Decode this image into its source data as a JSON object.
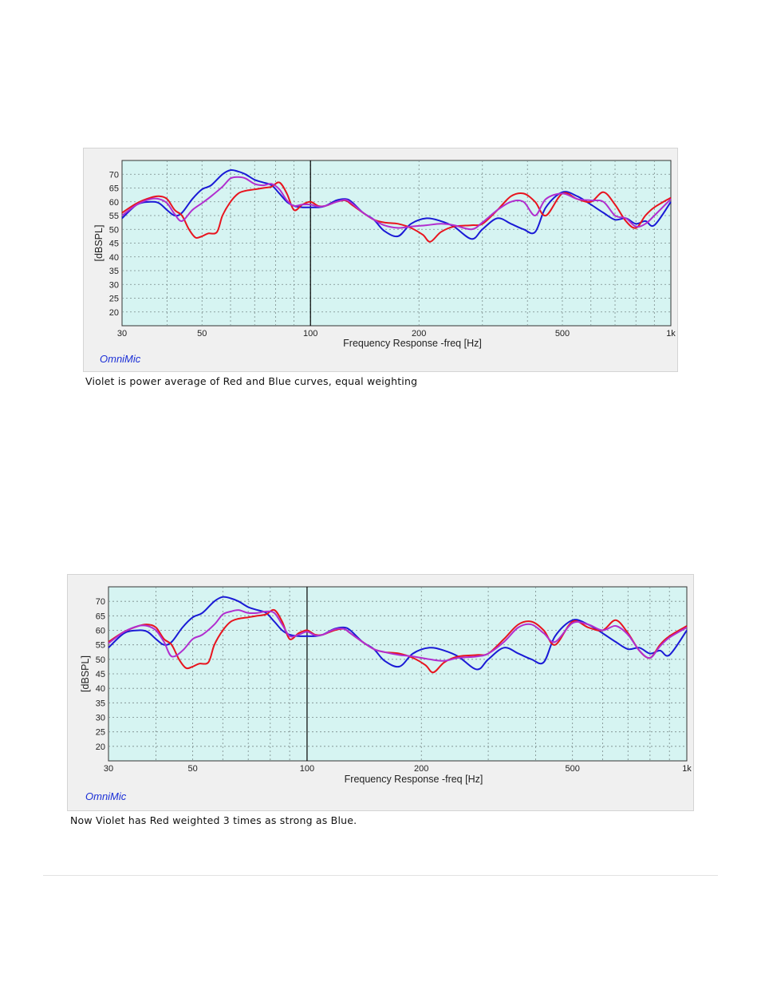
{
  "figures": [
    {
      "brand": "OmniMic",
      "caption": "Violet is power average of Red and Blue curves, equal weighting"
    },
    {
      "brand": "OmniMic",
      "caption": "Now Violet has Red weighted 3 times as strong as Blue."
    }
  ],
  "chart_data": [
    {
      "type": "line",
      "title": "",
      "xlabel": "Frequency Response -freq [Hz]",
      "ylabel": "[dBSPL]",
      "x_scale": "log",
      "xlim": [
        30,
        1000
      ],
      "ylim": [
        15,
        75
      ],
      "x_ticks": [
        30,
        50,
        100,
        200,
        500,
        1000
      ],
      "x_tick_labels": [
        "30",
        "50",
        "100",
        "200",
        "500",
        "1k"
      ],
      "y_ticks": [
        20,
        25,
        30,
        35,
        40,
        45,
        50,
        55,
        60,
        65,
        70
      ],
      "marker_line_x": 100,
      "grid": true,
      "colors": {
        "background": "#d6f4f2",
        "red": "#e8141e",
        "blue": "#1a1ad6",
        "violet": "#b12ecf",
        "grid": "#7a8a8a"
      },
      "series": [
        {
          "color": "#1a1ad6",
          "x": [
            30,
            33,
            36,
            38,
            40,
            42,
            44,
            47,
            50,
            53,
            57,
            60,
            63,
            66,
            70,
            74,
            78,
            82,
            86,
            90,
            95,
            100,
            105,
            110,
            118,
            125,
            130,
            140,
            150,
            160,
            175,
            190,
            210,
            230,
            250,
            280,
            300,
            330,
            360,
            390,
            420,
            450,
            500,
            550,
            600,
            650,
            700,
            750,
            800,
            850,
            900,
            1000
          ],
          "y": [
            54,
            59,
            60,
            59.5,
            57,
            55,
            56,
            61,
            64.5,
            66,
            70,
            71.5,
            71,
            70,
            68,
            67,
            66,
            63,
            60,
            58.5,
            58,
            58,
            58,
            58.5,
            60.5,
            61,
            60,
            56,
            53.5,
            49.5,
            47.5,
            52,
            54,
            53,
            51,
            46.5,
            50,
            54,
            52,
            50,
            49,
            58,
            63.5,
            62,
            59,
            56,
            53.5,
            54,
            52,
            53,
            51.5,
            60
          ]
        },
        {
          "color": "#e8141e",
          "x": [
            30,
            33,
            36,
            38,
            40,
            42,
            44,
            46,
            48,
            50,
            52,
            55,
            57,
            60,
            63,
            66,
            70,
            74,
            78,
            82,
            86,
            90,
            95,
            100,
            105,
            110,
            118,
            125,
            130,
            140,
            150,
            160,
            175,
            190,
            205,
            215,
            230,
            250,
            280,
            300,
            330,
            360,
            390,
            420,
            450,
            500,
            550,
            600,
            650,
            700,
            750,
            800,
            850,
            900,
            1000
          ],
          "y": [
            56,
            59.5,
            61.5,
            62,
            61,
            57,
            55,
            50,
            47,
            47.5,
            48.5,
            49,
            55,
            60,
            63,
            64,
            64.5,
            65,
            65.5,
            67,
            63,
            57,
            59,
            60,
            58.5,
            58.5,
            60,
            60.5,
            59,
            56,
            53.5,
            52.5,
            52,
            50.5,
            48,
            45.5,
            49,
            51,
            51.5,
            52,
            57,
            62,
            63,
            60,
            55,
            63,
            61,
            60,
            63.5,
            59,
            53,
            50.5,
            55,
            58,
            61.5
          ]
        },
        {
          "color": "#b12ecf",
          "x": [
            30,
            33,
            36,
            38,
            40,
            42,
            44,
            47,
            50,
            53,
            57,
            60,
            63,
            66,
            70,
            74,
            78,
            82,
            86,
            90,
            95,
            100,
            105,
            110,
            118,
            125,
            130,
            140,
            150,
            160,
            175,
            190,
            210,
            230,
            250,
            280,
            300,
            330,
            360,
            390,
            420,
            450,
            500,
            550,
            600,
            650,
            700,
            750,
            800,
            850,
            900,
            1000
          ],
          "y": [
            55,
            59,
            61,
            61,
            59.5,
            55.5,
            53,
            57,
            59.5,
            62,
            65.5,
            68.5,
            69,
            68.5,
            66.5,
            66,
            66.5,
            64.5,
            60.5,
            58.5,
            59,
            59,
            58.3,
            58.5,
            60,
            60.7,
            59.5,
            56,
            53.5,
            51.5,
            50.5,
            51,
            51.5,
            52,
            51.5,
            50,
            52.5,
            57,
            60,
            60,
            55,
            61,
            63,
            61,
            60.5,
            60,
            55,
            54,
            51,
            52,
            55,
            61
          ]
        }
      ]
    },
    {
      "type": "line",
      "title": "",
      "xlabel": "Frequency Response -freq [Hz]",
      "ylabel": "[dBSPL]",
      "x_scale": "log",
      "xlim": [
        30,
        1000
      ],
      "ylim": [
        15,
        75
      ],
      "x_ticks": [
        30,
        50,
        100,
        200,
        500,
        1000
      ],
      "x_tick_labels": [
        "30",
        "50",
        "100",
        "200",
        "500",
        "1k"
      ],
      "y_ticks": [
        20,
        25,
        30,
        35,
        40,
        45,
        50,
        55,
        60,
        65,
        70
      ],
      "marker_line_x": 100,
      "grid": true,
      "colors": {
        "background": "#d6f4f2",
        "red": "#e8141e",
        "blue": "#1a1ad6",
        "violet": "#b12ecf",
        "grid": "#7a8a8a"
      },
      "series": [
        {
          "color": "#1a1ad6",
          "x": [
            30,
            33,
            36,
            38,
            40,
            42,
            44,
            47,
            50,
            53,
            57,
            60,
            63,
            66,
            70,
            74,
            78,
            82,
            86,
            90,
            95,
            100,
            105,
            110,
            118,
            125,
            130,
            140,
            150,
            160,
            175,
            190,
            210,
            230,
            250,
            280,
            300,
            330,
            360,
            390,
            420,
            450,
            500,
            550,
            600,
            650,
            700,
            750,
            800,
            850,
            900,
            1000
          ],
          "y": [
            54,
            59,
            60,
            59.5,
            57,
            55,
            56,
            61,
            64.5,
            66,
            70,
            71.5,
            71,
            70,
            68,
            67,
            66,
            63,
            60,
            58.5,
            58,
            58,
            58,
            58.5,
            60.5,
            61,
            60,
            56,
            53.5,
            49.5,
            47.5,
            52,
            54,
            53,
            51,
            46.5,
            50,
            54,
            52,
            50,
            49,
            58,
            63.5,
            62,
            59,
            56,
            53.5,
            54,
            52,
            53,
            51.5,
            60
          ]
        },
        {
          "color": "#e8141e",
          "x": [
            30,
            33,
            36,
            38,
            40,
            42,
            44,
            46,
            48,
            50,
            52,
            55,
            57,
            60,
            63,
            66,
            70,
            74,
            78,
            82,
            86,
            90,
            95,
            100,
            105,
            110,
            118,
            125,
            130,
            140,
            150,
            160,
            175,
            190,
            205,
            215,
            230,
            250,
            280,
            300,
            330,
            360,
            390,
            420,
            450,
            500,
            550,
            600,
            650,
            700,
            750,
            800,
            850,
            900,
            1000
          ],
          "y": [
            56,
            59.5,
            61.5,
            62,
            61,
            57,
            55,
            50,
            47,
            47.5,
            48.5,
            49,
            55,
            60,
            63,
            64,
            64.5,
            65,
            65.5,
            67,
            63,
            57,
            59,
            60,
            58.5,
            58.5,
            60,
            60.5,
            59,
            56,
            53.5,
            52.5,
            52,
            50.5,
            48,
            45.5,
            49,
            51,
            51.5,
            52,
            57,
            62,
            63,
            60,
            55,
            63,
            61,
            60,
            63.5,
            59,
            53,
            50.5,
            55,
            58,
            61.5
          ]
        },
        {
          "color": "#b12ecf",
          "x": [
            30,
            33,
            36,
            38,
            40,
            42,
            44,
            47,
            50,
            53,
            57,
            60,
            63,
            66,
            70,
            74,
            78,
            82,
            86,
            90,
            95,
            100,
            105,
            110,
            118,
            125,
            130,
            140,
            150,
            160,
            175,
            190,
            210,
            230,
            250,
            280,
            300,
            330,
            360,
            390,
            420,
            450,
            500,
            550,
            600,
            650,
            700,
            750,
            800,
            850,
            900,
            1000
          ],
          "y": [
            55.5,
            59.5,
            61.5,
            61.5,
            60,
            56,
            51,
            53,
            57,
            58.5,
            62,
            65.5,
            66.5,
            67,
            66,
            66,
            66.5,
            66,
            62,
            58,
            58.5,
            59.5,
            58.3,
            58.5,
            60.3,
            60.5,
            59,
            56,
            53.5,
            52.5,
            51.5,
            51,
            50,
            49.5,
            50.5,
            51,
            52,
            56,
            61,
            62,
            59,
            56,
            62.5,
            62,
            60,
            61.5,
            58.5,
            53,
            50.5,
            54.5,
            57.5,
            61
          ]
        }
      ]
    }
  ]
}
